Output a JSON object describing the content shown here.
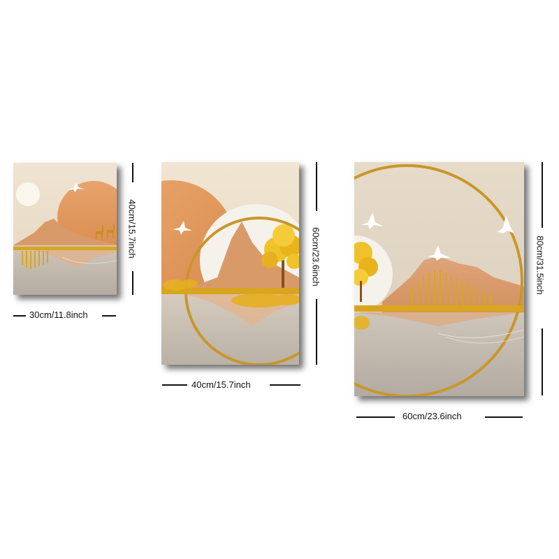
{
  "panels": [
    {
      "id": "small",
      "width_label": "30cm/11.8inch",
      "height_label": "40cm/15.7inch"
    },
    {
      "id": "medium",
      "width_label": "40cm/15.7inch",
      "height_label": "60cm/23.6inch"
    },
    {
      "id": "large",
      "width_label": "60cm/23.6inch",
      "height_label": "80cm/31.5inch"
    }
  ],
  "colors": {
    "sky": "#e9dcc6",
    "mountain": "#d99a6a",
    "gold": "#d9a520",
    "ground": "#bdb5a9",
    "sun_white": "#f7f3ec"
  }
}
